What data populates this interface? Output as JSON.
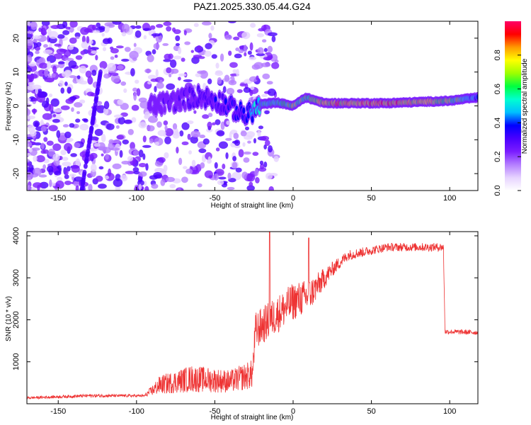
{
  "title": "PAZ1.2025.330.05.44.G24",
  "chart_data": [
    {
      "type": "heatmap",
      "name": "spectrogram",
      "xlabel": "Height of straight line (km)",
      "ylabel": "Frequency (Hz)",
      "xlim": [
        -170,
        118
      ],
      "ylim": [
        -25,
        25
      ],
      "xticks": [
        -150,
        -100,
        -50,
        0,
        50,
        100
      ],
      "yticks": [
        -20,
        -10,
        0,
        10,
        20
      ],
      "colorbar": {
        "label": "Normalized spectral amplitude",
        "range": [
          0.0,
          1.0
        ],
        "ticks": [
          0.0,
          0.2,
          0.4,
          0.6,
          0.8
        ],
        "colormap": [
          "#ffffff",
          "#e6d3ff",
          "#b47dff",
          "#7a1cff",
          "#4a00ff",
          "#0000ff",
          "#00bfff",
          "#00ffd0",
          "#00ff40",
          "#9cff00",
          "#ffff00",
          "#ff9a00",
          "#ff0000",
          "#ff0066"
        ]
      },
      "ridge": [
        {
          "x": -90,
          "f": 0,
          "a": 0.25
        },
        {
          "x": -80,
          "f": 1,
          "a": 0.3
        },
        {
          "x": -60,
          "f": 3,
          "a": 0.35
        },
        {
          "x": -45,
          "f": 1,
          "a": 0.35
        },
        {
          "x": -30,
          "f": -3,
          "a": 0.45
        },
        {
          "x": -20,
          "f": 0.5,
          "a": 0.6
        },
        {
          "x": -10,
          "f": 1,
          "a": 0.6
        },
        {
          "x": 0,
          "f": 0,
          "a": 0.8
        },
        {
          "x": 8,
          "f": 2.5,
          "a": 0.7
        },
        {
          "x": 20,
          "f": 0.8,
          "a": 0.9
        },
        {
          "x": 60,
          "f": 0.8,
          "a": 0.95
        },
        {
          "x": 100,
          "f": 1.5,
          "a": 0.8
        },
        {
          "x": 118,
          "f": 2.5,
          "a": 0.5
        }
      ]
    },
    {
      "type": "line",
      "name": "snr",
      "xlabel": "Height of straight line (km)",
      "ylabel": "SNR (10 * v/v)",
      "xlim": [
        -170,
        118
      ],
      "ylim": [
        0,
        4100
      ],
      "xticks": [
        -150,
        -100,
        -50,
        0,
        50,
        100
      ],
      "yticks": [
        1000,
        2000,
        3000,
        4000
      ],
      "color": "#ee3333",
      "series_points": [
        {
          "x": -170,
          "y": 130,
          "noise": 60
        },
        {
          "x": -130,
          "y": 180,
          "noise": 80
        },
        {
          "x": -95,
          "y": 180,
          "noise": 60
        },
        {
          "x": -85,
          "y": 380,
          "noise": 450
        },
        {
          "x": -65,
          "y": 500,
          "noise": 650
        },
        {
          "x": -40,
          "y": 450,
          "noise": 550
        },
        {
          "x": -26,
          "y": 600,
          "noise": 700
        },
        {
          "x": -24,
          "y": 1600,
          "noise": 900
        },
        {
          "x": -10,
          "y": 2000,
          "noise": 900
        },
        {
          "x": 0,
          "y": 2300,
          "noise": 900
        },
        {
          "x": 10,
          "y": 2450,
          "noise": 800
        },
        {
          "x": 25,
          "y": 3150,
          "noise": 350
        },
        {
          "x": 35,
          "y": 3500,
          "noise": 250
        },
        {
          "x": 60,
          "y": 3700,
          "noise": 200
        },
        {
          "x": 96,
          "y": 3700,
          "noise": 200
        },
        {
          "x": 97,
          "y": 1700,
          "noise": 120
        },
        {
          "x": 118,
          "y": 1680,
          "noise": 120
        }
      ],
      "spikes": [
        {
          "x": -15,
          "y": 4100
        },
        {
          "x": 10,
          "y": 3950
        }
      ]
    }
  ]
}
